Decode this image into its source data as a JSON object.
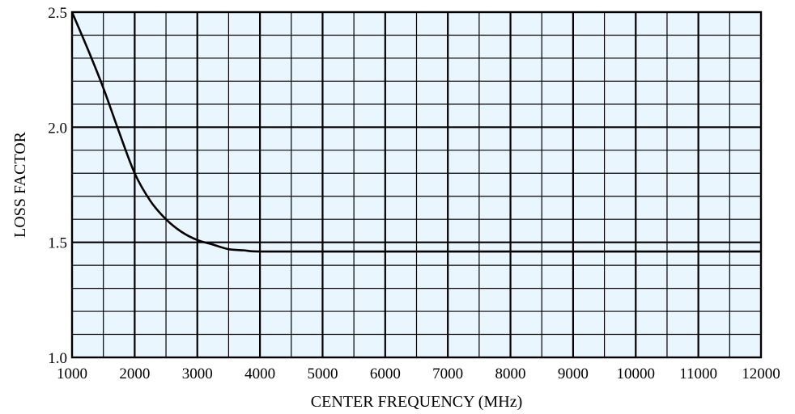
{
  "chart_data": {
    "type": "line",
    "title": "",
    "xlabel": "CENTER FREQUENCY (MHz)",
    "ylabel": "LOSS FACTOR",
    "xlim": [
      1000,
      12000
    ],
    "ylim": [
      1.0,
      2.5
    ],
    "x_ticks": [
      1000,
      2000,
      3000,
      4000,
      5000,
      6000,
      7000,
      8000,
      9000,
      10000,
      11000,
      12000
    ],
    "x_tick_labels": [
      "1000",
      "2000",
      "3000",
      "4000",
      "5000",
      "6000",
      "7000",
      "8000",
      "9000",
      "10000",
      "11000",
      "12000"
    ],
    "y_ticks": [
      1.0,
      1.5,
      2.0,
      2.5
    ],
    "y_tick_labels": [
      "1.0",
      "1.5",
      "2.0",
      "2.5"
    ],
    "grid": {
      "on": true,
      "major_x_step": 1000,
      "minor_x_step": 500,
      "major_y_step": 0.5,
      "minor_y_step": 0.1
    },
    "colors": {
      "plot_background": "#eaf6fe",
      "grid_line": "#000000",
      "curve": "#000000",
      "axis_text": "#000000"
    },
    "series": [
      {
        "x": [
          1000,
          1250,
          1500,
          1750,
          2000,
          2250,
          2500,
          2750,
          3000,
          3250,
          3500,
          3750,
          4000,
          5000,
          6000,
          7000,
          8000,
          9000,
          10000,
          11000,
          12000
        ],
        "y": [
          2.5,
          2.34,
          2.17,
          1.98,
          1.8,
          1.68,
          1.6,
          1.545,
          1.51,
          1.49,
          1.47,
          1.465,
          1.46,
          1.46,
          1.46,
          1.46,
          1.46,
          1.46,
          1.46,
          1.46,
          1.46
        ]
      }
    ]
  }
}
